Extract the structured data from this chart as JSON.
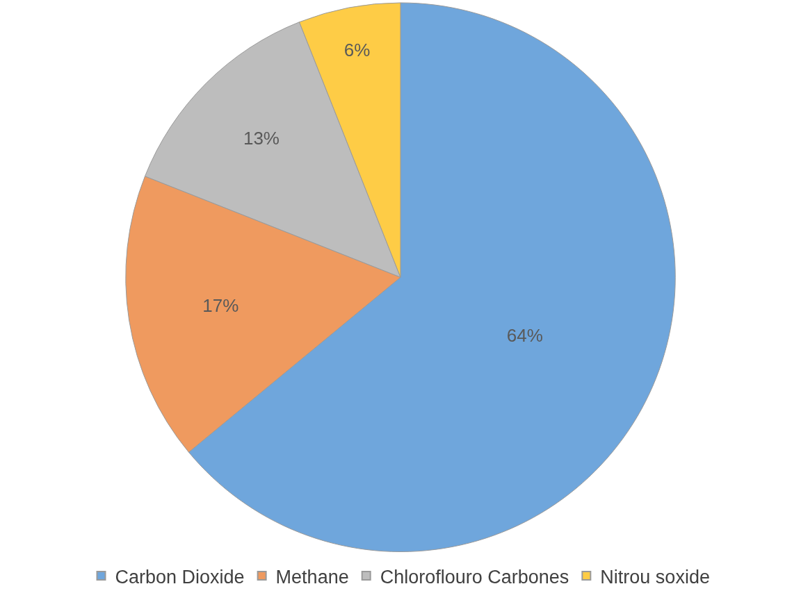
{
  "chart_data": {
    "type": "pie",
    "categories": [
      "Carbon Dioxide",
      "Methane",
      "Chloroflouro Carbones",
      "Nitrou soxide"
    ],
    "values": [
      64,
      17,
      13,
      6
    ],
    "colors": [
      "#6fa6dc",
      "#ef9a5f",
      "#bdbdbd",
      "#fecc46"
    ],
    "value_labels": [
      "64%",
      "17%",
      "13%",
      "6%"
    ],
    "legend": "bottom"
  }
}
